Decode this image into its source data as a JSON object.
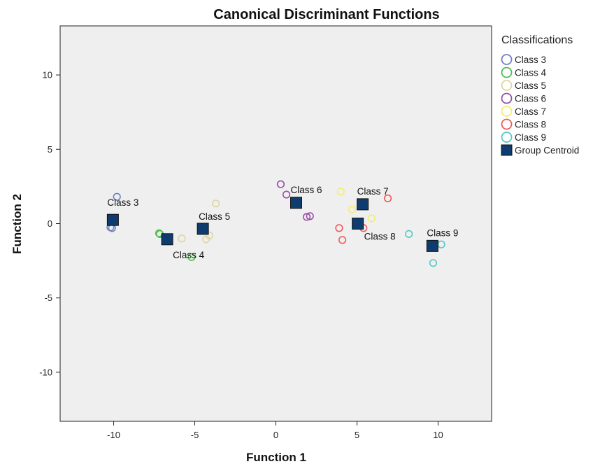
{
  "chart_data": {
    "type": "scatter",
    "title": "Canonical Discriminant Functions",
    "xlabel": "Function 1",
    "ylabel": "Function 2",
    "xlim": [
      -13.3,
      13.3
    ],
    "ylim": [
      -13.3,
      13.3
    ],
    "xticks": [
      -10,
      -5,
      0,
      5,
      10
    ],
    "yticks": [
      10,
      5,
      0,
      -5,
      -10
    ],
    "grid": false,
    "plot_background": "#efefef",
    "legend": {
      "title": "Classifications",
      "placement": "right",
      "items": [
        {
          "label": "Class 3",
          "color": "#6f7fc4",
          "shape": "circle"
        },
        {
          "label": "Class 4",
          "color": "#4cbf4c",
          "shape": "circle"
        },
        {
          "label": "Class 5",
          "color": "#ddd6a6",
          "shape": "circle"
        },
        {
          "label": "Class 6",
          "color": "#9a4ea8",
          "shape": "circle"
        },
        {
          "label": "Class 7",
          "color": "#f2ee6e",
          "shape": "circle"
        },
        {
          "label": "Class 8",
          "color": "#ef5a5a",
          "shape": "circle"
        },
        {
          "label": "Class 9",
          "color": "#56c8c4",
          "shape": "circle"
        },
        {
          "label": "Group Centroid",
          "color": "#0e3c6e",
          "shape": "square"
        }
      ]
    },
    "series": [
      {
        "name": "Class 3",
        "color": "#6f7fc4",
        "points": [
          [
            -9.8,
            1.8
          ],
          [
            -10.2,
            -0.25
          ],
          [
            -10.1,
            -0.3
          ]
        ]
      },
      {
        "name": "Class 4",
        "color": "#4cbf4c",
        "points": [
          [
            -7.2,
            -0.65
          ],
          [
            -7.15,
            -0.7
          ],
          [
            -5.2,
            -2.25
          ]
        ]
      },
      {
        "name": "Class 5",
        "color": "#ddd6a6",
        "points": [
          [
            -5.8,
            -1.0
          ],
          [
            -4.1,
            -0.8
          ],
          [
            -4.3,
            -1.05
          ],
          [
            -3.7,
            1.35
          ]
        ]
      },
      {
        "name": "Class 6",
        "color": "#9a4ea8",
        "points": [
          [
            0.3,
            2.65
          ],
          [
            0.65,
            1.95
          ],
          [
            1.9,
            0.45
          ],
          [
            2.1,
            0.5
          ]
        ]
      },
      {
        "name": "Class 7",
        "color": "#f2ee6e",
        "points": [
          [
            4.0,
            2.15
          ],
          [
            4.7,
            0.95
          ],
          [
            5.9,
            0.35
          ]
        ]
      },
      {
        "name": "Class 8",
        "color": "#ef5a5a",
        "points": [
          [
            3.9,
            -0.3
          ],
          [
            4.1,
            -1.1
          ],
          [
            5.4,
            -0.3
          ],
          [
            6.9,
            1.7
          ]
        ]
      },
      {
        "name": "Class 9",
        "color": "#56c8c4",
        "points": [
          [
            8.2,
            -0.7
          ],
          [
            10.2,
            -1.4
          ],
          [
            9.7,
            -2.65
          ]
        ]
      },
      {
        "name": "Group Centroid",
        "color": "#0e3c6e",
        "marker": "square",
        "points": [
          {
            "x": -10.05,
            "y": 0.25,
            "label": "Class 3"
          },
          {
            "x": -6.7,
            "y": -1.05,
            "label": "Class 4"
          },
          {
            "x": -4.5,
            "y": -0.35,
            "label": "Class 5"
          },
          {
            "x": 1.25,
            "y": 1.4,
            "label": "Class 6"
          },
          {
            "x": 5.35,
            "y": 1.3,
            "label": "Class 7"
          },
          {
            "x": 5.05,
            "y": 0.0,
            "label": "Class 8"
          },
          {
            "x": 9.65,
            "y": -1.5,
            "label": "Class 9"
          }
        ]
      }
    ]
  }
}
